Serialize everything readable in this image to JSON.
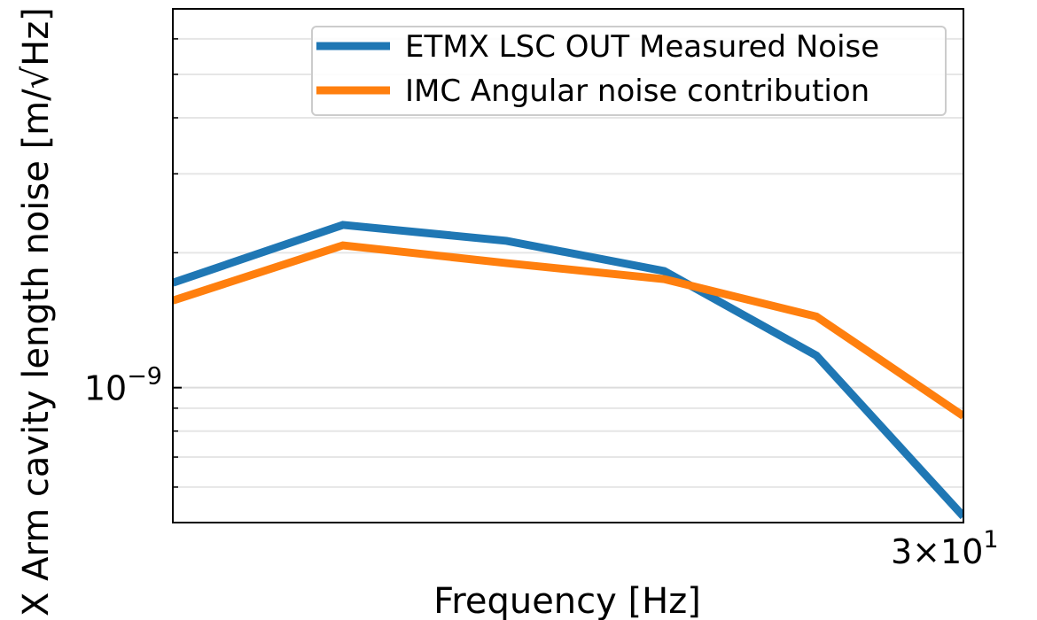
{
  "chart_data": {
    "type": "line",
    "xlabel": "Frequency [Hz]",
    "ylabel": "X Arm cavity length noise [m/√Hz]",
    "x": [
      25,
      26,
      27,
      28,
      29,
      30
    ],
    "series": [
      {
        "name": "ETMX LSC OUT Measured Noise",
        "color": "#1f77b4",
        "values": [
          1.714e-09,
          2.307e-09,
          2.126e-09,
          1.82e-09,
          1.179e-09,
          5.16e-10
        ]
      },
      {
        "name": "IMC Angular noise contribution",
        "color": "#ff7f0e",
        "values": [
          1.564e-09,
          2.077e-09,
          1.896e-09,
          1.746e-09,
          1.441e-09,
          8.64e-10
        ]
      }
    ],
    "xlim": [
      25,
      30
    ],
    "ylim": [
      5e-10,
      7e-09
    ],
    "xticks": [
      {
        "value": 30,
        "label": "3×10",
        "exponent": "1"
      }
    ],
    "yticks": [
      {
        "value": 1e-09,
        "label": "10",
        "exponent": "−9"
      }
    ],
    "yminor": [
      6e-10,
      7e-10,
      8e-10,
      9e-10,
      2e-09,
      3e-09,
      4e-09,
      5e-09,
      6e-09
    ],
    "xscale": "log",
    "yscale": "log",
    "grid": true,
    "legend": "upper right"
  }
}
